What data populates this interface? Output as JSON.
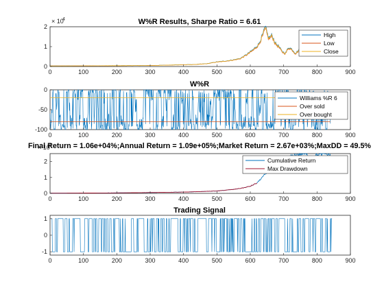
{
  "colors": {
    "blue": "#0072bd",
    "red": "#d95319",
    "yellow": "#edb120",
    "darkred": "#a2142f"
  },
  "chart_data": [
    {
      "type": "line",
      "title": "W%R Results, Sharpe Ratio = 6.61",
      "xlim": [
        0,
        900
      ],
      "ylim": [
        0,
        20000
      ],
      "x_ticks": [
        "0",
        "100",
        "200",
        "300",
        "400",
        "500",
        "600",
        "700",
        "800",
        "900"
      ],
      "y_ticks": [
        "0",
        "1",
        "2"
      ],
      "y_exponent_base": "× 10",
      "y_exponent": "4",
      "legend_position": "top-right",
      "series": [
        {
          "name": "High",
          "color": "#0072bd"
        },
        {
          "name": "Low",
          "color": "#d95319"
        },
        {
          "name": "Close",
          "color": "#edb120"
        }
      ],
      "keypoints": [
        [
          0,
          300
        ],
        [
          100,
          350
        ],
        [
          200,
          420
        ],
        [
          300,
          500
        ],
        [
          400,
          900
        ],
        [
          430,
          1000
        ],
        [
          470,
          1400
        ],
        [
          500,
          2300
        ],
        [
          520,
          2600
        ],
        [
          550,
          3300
        ],
        [
          570,
          4000
        ],
        [
          590,
          6000
        ],
        [
          610,
          8500
        ],
        [
          625,
          11000
        ],
        [
          638,
          16000
        ],
        [
          645,
          19500
        ],
        [
          655,
          14000
        ],
        [
          665,
          15500
        ],
        [
          675,
          11500
        ],
        [
          685,
          10000
        ],
        [
          695,
          7500
        ],
        [
          705,
          6500
        ],
        [
          715,
          9500
        ],
        [
          725,
          8500
        ],
        [
          735,
          6500
        ],
        [
          745,
          8000
        ],
        [
          760,
          10000
        ],
        [
          780,
          9800
        ],
        [
          800,
          10000
        ],
        [
          820,
          10500
        ],
        [
          835,
          11000
        ]
      ]
    },
    {
      "type": "line",
      "title": "W%R",
      "xlim": [
        0,
        900
      ],
      "ylim": [
        -100,
        0
      ],
      "x_ticks": [
        "0",
        "100",
        "200",
        "300",
        "400",
        "500",
        "600",
        "700",
        "800",
        "900"
      ],
      "y_ticks": [
        "-100",
        "-50",
        "0"
      ],
      "legend_position": "top-right",
      "series": [
        {
          "name": "Williams %R 6",
          "color": "#0072bd"
        },
        {
          "name": "Over sold",
          "color": "#d95319",
          "value": -80
        },
        {
          "name": "Over bought",
          "color": "#edb120",
          "value": -20
        }
      ],
      "n_points": 840
    },
    {
      "type": "line",
      "title": "Final Return = 1.06e+04%;Annual Return = 1.09e+05%;Market Return = 2.67e+03%;MaxDD = 49.5%",
      "xlim": [
        0,
        900
      ],
      "ylim": [
        0,
        25000
      ],
      "x_ticks": [
        "0",
        "100",
        "200",
        "300",
        "400",
        "500",
        "600",
        "700",
        "800",
        "900"
      ],
      "y_ticks": [
        "0",
        "1",
        "2"
      ],
      "y_exponent_base": "× 10",
      "y_exponent": "4",
      "legend_position": "top-right",
      "series": [
        {
          "name": "Cumulative Return",
          "color": "#0072bd"
        },
        {
          "name": "Max Drawdown",
          "color": "#a2142f"
        }
      ],
      "keypoints": [
        [
          0,
          100
        ],
        [
          200,
          300
        ],
        [
          400,
          800
        ],
        [
          500,
          1500
        ],
        [
          550,
          2500
        ],
        [
          580,
          3500
        ],
        [
          600,
          4500
        ],
        [
          620,
          6500
        ],
        [
          640,
          11000
        ],
        [
          660,
          15000
        ],
        [
          680,
          20000
        ],
        [
          690,
          16000
        ],
        [
          700,
          19000
        ],
        [
          720,
          23000
        ],
        [
          740,
          24500
        ],
        [
          760,
          25000
        ],
        [
          780,
          23000
        ],
        [
          800,
          24000
        ],
        [
          820,
          25000
        ],
        [
          840,
          24000
        ]
      ]
    },
    {
      "type": "line",
      "title": "Trading Signal",
      "xlim": [
        0,
        900
      ],
      "ylim": [
        -1.2,
        1.2
      ],
      "x_ticks": [
        "0",
        "100",
        "200",
        "300",
        "400",
        "500",
        "600",
        "700",
        "800",
        "900"
      ],
      "y_ticks": [
        "-1",
        "0",
        "1"
      ],
      "series": [
        {
          "color": "#0072bd",
          "values": [
            -1,
            1
          ]
        }
      ],
      "n_points": 845
    }
  ]
}
